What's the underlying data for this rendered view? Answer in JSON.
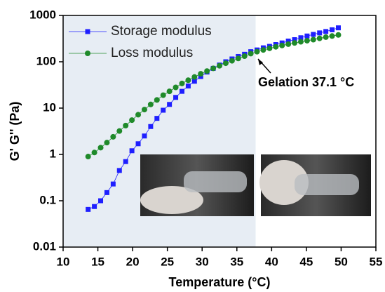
{
  "chart_data": {
    "type": "line",
    "x_label": "Temperature (°C)",
    "y_label": "G' G'' (Pa)",
    "log_y": true,
    "xlim": [
      10,
      55
    ],
    "ylim": [
      0.01,
      1000
    ],
    "xticks": [
      10,
      15,
      20,
      25,
      30,
      35,
      40,
      45,
      50,
      55
    ],
    "yticks": [
      0.01,
      0.1,
      1,
      10,
      100,
      1000
    ],
    "highlight_xrange": [
      10,
      37.7
    ],
    "highlight_color": "#e7edf4",
    "annotation": "Gelation 37.1 °C",
    "x": [
      13.6,
      14.5,
      15.4,
      16.3,
      17.2,
      18.1,
      19.0,
      19.9,
      20.8,
      21.7,
      22.6,
      23.5,
      24.4,
      25.3,
      26.2,
      27.1,
      28.0,
      28.9,
      29.8,
      30.7,
      31.6,
      32.5,
      33.4,
      34.3,
      35.2,
      36.1,
      37.0,
      37.9,
      38.8,
      39.7,
      40.6,
      41.5,
      42.4,
      43.3,
      44.2,
      45.1,
      46.0,
      46.9,
      47.8,
      48.7,
      49.6
    ],
    "series": [
      {
        "name": "Storage modulus",
        "color": "#1f1fff",
        "marker": "square",
        "values": [
          0.065,
          0.075,
          0.1,
          0.15,
          0.23,
          0.45,
          0.7,
          1.2,
          1.7,
          2.5,
          4,
          6,
          9,
          12,
          17,
          23,
          30,
          38,
          48,
          60,
          72,
          85,
          100,
          115,
          130,
          145,
          165,
          180,
          200,
          215,
          235,
          255,
          280,
          300,
          330,
          360,
          390,
          420,
          450,
          490,
          540
        ]
      },
      {
        "name": "Loss modulus",
        "color": "#1f8a2a",
        "marker": "circle",
        "values": [
          0.9,
          1.1,
          1.4,
          1.8,
          2.4,
          3.2,
          4.2,
          5.5,
          7.2,
          9.3,
          12,
          15,
          19,
          23,
          28,
          34,
          40,
          47,
          55,
          63,
          72,
          82,
          93,
          105,
          118,
          132,
          150,
          165,
          180,
          195,
          210,
          225,
          240,
          255,
          270,
          285,
          300,
          320,
          340,
          360,
          380
        ]
      }
    ]
  }
}
